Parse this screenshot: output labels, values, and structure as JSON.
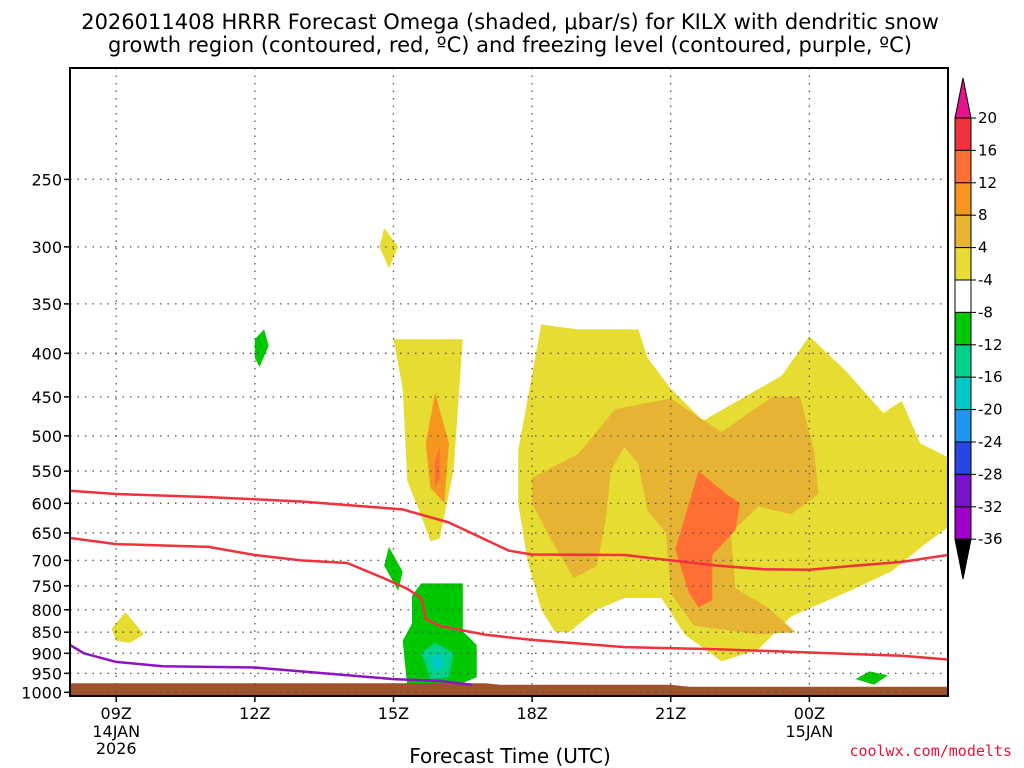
{
  "chart_data": {
    "type": "time-height cross section (filled contour)",
    "title_line1": "2026011408 HRRR Forecast Omega (shaded, μbar/s) for KILX with dendritic snow",
    "title_line2": "growth region (contoured, red, ºC) and freezing level (contoured, purple, ºC)",
    "xlabel": "Forecast Time (UTC)",
    "credit": "coolwx.com/modelts",
    "x_unit": "hours after 2026-01-14 06Z",
    "x_range": [
      2,
      21
    ],
    "y_unit": "hPa",
    "y_range": [
      1010,
      185
    ],
    "y_ticks": [
      250,
      300,
      350,
      400,
      450,
      500,
      550,
      600,
      650,
      700,
      750,
      800,
      850,
      900,
      950,
      1000
    ],
    "x_ticks": [
      {
        "x": 3,
        "label": "09Z",
        "sub": [
          "14JAN",
          "2026"
        ]
      },
      {
        "x": 6,
        "label": "12Z",
        "sub": []
      },
      {
        "x": 9,
        "label": "15Z",
        "sub": []
      },
      {
        "x": 12,
        "label": "18Z",
        "sub": []
      },
      {
        "x": 15,
        "label": "21Z",
        "sub": []
      },
      {
        "x": 18,
        "label": "00Z",
        "sub": [
          "15JAN"
        ]
      }
    ],
    "colorbar": {
      "levels": [
        20,
        16,
        12,
        8,
        4,
        -4,
        -8,
        -12,
        -16,
        -20,
        -24,
        -28,
        -32,
        -36
      ],
      "colors": [
        "#f0323c",
        "#ff6e32",
        "#f5961e",
        "#e6b432",
        "#e6dc32",
        "#ffffff",
        "#00c800",
        "#00d28c",
        "#00c8c8",
        "#1e96f0",
        "#2846e6",
        "#7814c8",
        "#a000c8",
        "#a0a0a0"
      ],
      "top_color": "#e6148c",
      "bottom_color": "#000000"
    },
    "colors": {
      "ground": "#a0522d",
      "dgz_line": "#f0323c",
      "freezing_line": "#8c14c8",
      "credit": "#e6143c"
    },
    "omega_regions": [
      {
        "color": "#e6dc32",
        "points": [
          [
            8.8,
            285
          ],
          [
            9.1,
            300
          ],
          [
            8.9,
            318
          ],
          [
            8.7,
            300
          ]
        ]
      },
      {
        "color": "#e6dc32",
        "points": [
          [
            2.9,
            842
          ],
          [
            3.2,
            805
          ],
          [
            3.6,
            855
          ],
          [
            3.3,
            875
          ],
          [
            3.0,
            870
          ]
        ]
      },
      {
        "color": "#00c800",
        "points": [
          [
            6.0,
            385
          ],
          [
            6.2,
            375
          ],
          [
            6.3,
            392
          ],
          [
            6.1,
            415
          ],
          [
            6.0,
            405
          ]
        ]
      },
      {
        "color": "#00c800",
        "points": [
          [
            8.8,
            710
          ],
          [
            8.9,
            675
          ],
          [
            9.2,
            722
          ],
          [
            9.1,
            760
          ]
        ]
      },
      {
        "color": "#00c800",
        "points": [
          [
            19.0,
            965
          ],
          [
            19.3,
            945
          ],
          [
            19.7,
            955
          ],
          [
            19.4,
            980
          ]
        ]
      },
      {
        "color": "#00c800",
        "points": [
          [
            9.4,
            770
          ],
          [
            9.6,
            745
          ],
          [
            10.5,
            745
          ],
          [
            10.5,
            848
          ],
          [
            10.8,
            880
          ],
          [
            10.8,
            960
          ],
          [
            10.2,
            990
          ],
          [
            9.3,
            985
          ],
          [
            9.2,
            870
          ],
          [
            9.4,
            830
          ]
        ]
      },
      {
        "color": "#00d28c",
        "points": [
          [
            9.6,
            900
          ],
          [
            9.9,
            875
          ],
          [
            10.3,
            900
          ],
          [
            10.2,
            960
          ],
          [
            9.8,
            965
          ],
          [
            9.7,
            930
          ]
        ]
      },
      {
        "color": "#00c8c8",
        "points": [
          [
            9.8,
            915
          ],
          [
            10.0,
            898
          ],
          [
            10.1,
            930
          ],
          [
            9.9,
            945
          ]
        ]
      },
      {
        "color": "#e6dc32",
        "points": [
          [
            9.0,
            385
          ],
          [
            10.5,
            385
          ],
          [
            10.4,
            460
          ],
          [
            10.3,
            550
          ],
          [
            10.0,
            660
          ],
          [
            9.8,
            665
          ],
          [
            9.6,
            620
          ],
          [
            9.3,
            565
          ],
          [
            9.2,
            440
          ]
        ]
      },
      {
        "color": "#f5961e",
        "points": [
          [
            9.7,
            510
          ],
          [
            9.9,
            445
          ],
          [
            10.2,
            510
          ],
          [
            10.1,
            600
          ],
          [
            9.8,
            575
          ]
        ]
      },
      {
        "color": "#ff6e32",
        "points": [
          [
            9.9,
            535
          ],
          [
            10.0,
            515
          ],
          [
            10.0,
            560
          ],
          [
            9.9,
            575
          ]
        ]
      },
      {
        "color": "#e6dc32",
        "points": [
          [
            11.7,
            520
          ],
          [
            12.2,
            370
          ],
          [
            13.0,
            375
          ],
          [
            14.3,
            375
          ],
          [
            14.5,
            405
          ],
          [
            15.0,
            440
          ],
          [
            15.7,
            480
          ],
          [
            16.6,
            450
          ],
          [
            17.4,
            425
          ],
          [
            18.0,
            382
          ],
          [
            18.8,
            420
          ],
          [
            19.6,
            470
          ],
          [
            20.0,
            455
          ],
          [
            20.4,
            510
          ],
          [
            21.0,
            530
          ],
          [
            21.0,
            640
          ],
          [
            20.5,
            670
          ],
          [
            19.8,
            720
          ],
          [
            19.0,
            755
          ],
          [
            18.4,
            780
          ],
          [
            17.6,
            815
          ],
          [
            16.9,
            890
          ],
          [
            16.1,
            920
          ],
          [
            15.3,
            855
          ],
          [
            14.8,
            775
          ],
          [
            14.0,
            775
          ],
          [
            13.4,
            800
          ],
          [
            12.8,
            850
          ],
          [
            12.5,
            850
          ],
          [
            12.2,
            800
          ],
          [
            11.9,
            700
          ],
          [
            11.7,
            600
          ]
        ]
      },
      {
        "color": "#e6b432",
        "points": [
          [
            12.0,
            560
          ],
          [
            13.0,
            525
          ],
          [
            13.8,
            465
          ],
          [
            15.0,
            452
          ],
          [
            16.1,
            495
          ],
          [
            17.2,
            450
          ],
          [
            17.8,
            450
          ],
          [
            18.1,
            520
          ],
          [
            18.2,
            585
          ],
          [
            17.6,
            618
          ],
          [
            16.9,
            605
          ],
          [
            16.3,
            650
          ],
          [
            16.4,
            755
          ],
          [
            17.1,
            795
          ],
          [
            17.7,
            850
          ],
          [
            16.9,
            855
          ],
          [
            15.5,
            835
          ],
          [
            15.0,
            765
          ],
          [
            14.9,
            650
          ],
          [
            14.5,
            612
          ],
          [
            14.3,
            540
          ],
          [
            14.0,
            515
          ],
          [
            13.7,
            550
          ],
          [
            13.6,
            625
          ],
          [
            13.4,
            710
          ],
          [
            12.9,
            735
          ],
          [
            12.4,
            660
          ],
          [
            12.0,
            600
          ]
        ]
      },
      {
        "color": "#ff6e32",
        "points": [
          [
            15.1,
            680
          ],
          [
            15.6,
            550
          ],
          [
            16.2,
            585
          ],
          [
            16.5,
            600
          ],
          [
            16.4,
            645
          ],
          [
            15.9,
            690
          ],
          [
            15.9,
            780
          ],
          [
            15.6,
            795
          ],
          [
            15.4,
            765
          ]
        ]
      }
    ],
    "dgz_minus12": [
      [
        2,
        580
      ],
      [
        3,
        585
      ],
      [
        5,
        590
      ],
      [
        7,
        597
      ],
      [
        9.2,
        610
      ],
      [
        10.2,
        632
      ],
      [
        11.5,
        682
      ],
      [
        12.0,
        689
      ],
      [
        14,
        690
      ],
      [
        16,
        710
      ],
      [
        17,
        717
      ],
      [
        18,
        718
      ],
      [
        19,
        710
      ],
      [
        20,
        703
      ],
      [
        21,
        690
      ]
    ],
    "dgz_minus18": [
      [
        2,
        659
      ],
      [
        3,
        670
      ],
      [
        5,
        675
      ],
      [
        6,
        690
      ],
      [
        7,
        700
      ],
      [
        8,
        705
      ],
      [
        8.8,
        735
      ],
      [
        9.3,
        756
      ],
      [
        9.6,
        775
      ],
      [
        9.7,
        820
      ],
      [
        10,
        836
      ],
      [
        11,
        856
      ],
      [
        12,
        868
      ],
      [
        14,
        885
      ],
      [
        16,
        890
      ],
      [
        18,
        898
      ],
      [
        20,
        906
      ],
      [
        21,
        915
      ]
    ],
    "freezing_0c": [
      [
        2,
        880
      ],
      [
        2.3,
        900
      ],
      [
        3,
        921
      ],
      [
        4,
        932
      ],
      [
        6,
        935
      ],
      [
        7,
        945
      ],
      [
        9,
        965
      ],
      [
        10,
        970
      ],
      [
        10.7,
        980
      ]
    ],
    "ground_surface": [
      [
        2,
        976
      ],
      [
        11,
        976
      ],
      [
        11.3,
        980
      ],
      [
        15,
        980
      ],
      [
        15.4,
        985
      ],
      [
        21,
        985
      ]
    ]
  }
}
